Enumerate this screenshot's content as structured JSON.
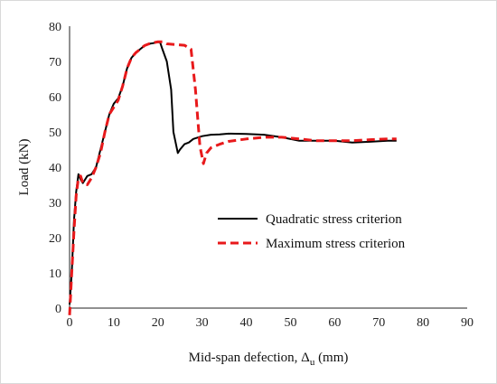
{
  "chart_data": {
    "type": "line",
    "title": "",
    "xlabel_main": "Mid-span defection, Δ",
    "xlabel_sub": "u",
    "xlabel_unit": " (mm)",
    "ylabel": "Load (kN)",
    "xlim": [
      0,
      90
    ],
    "ylim": [
      0,
      80
    ],
    "xticks": [
      "0",
      "10",
      "20",
      "30",
      "40",
      "50",
      "60",
      "70",
      "80",
      "90"
    ],
    "yticks": [
      "0",
      "10",
      "20",
      "30",
      "40",
      "50",
      "60",
      "70",
      "80"
    ],
    "grid": false,
    "legend_position": "center-right",
    "series": [
      {
        "name": "Quadratic stress criterion",
        "color": "#000000",
        "dash": "solid",
        "points": [
          [
            0,
            1
          ],
          [
            0.5,
            10
          ],
          [
            1,
            25
          ],
          [
            1.5,
            33
          ],
          [
            2,
            38
          ],
          [
            2.5,
            36.5
          ],
          [
            3,
            35.5
          ],
          [
            4,
            37.5
          ],
          [
            5,
            38
          ],
          [
            6,
            40
          ],
          [
            7,
            45
          ],
          [
            8,
            50
          ],
          [
            9,
            55
          ],
          [
            10,
            58
          ],
          [
            11,
            59.5
          ],
          [
            12,
            63
          ],
          [
            13,
            68
          ],
          [
            14,
            71
          ],
          [
            15,
            72.5
          ],
          [
            16,
            73.5
          ],
          [
            17,
            74.5
          ],
          [
            18,
            75
          ],
          [
            19,
            75.2
          ],
          [
            20,
            75.5
          ],
          [
            20.5,
            75.4
          ],
          [
            21,
            73.5
          ],
          [
            22,
            70
          ],
          [
            23,
            62
          ],
          [
            23.5,
            50
          ],
          [
            24.5,
            44
          ],
          [
            25,
            45
          ],
          [
            26,
            46.5
          ],
          [
            27,
            47
          ],
          [
            28,
            48
          ],
          [
            30,
            48.8
          ],
          [
            32,
            49.2
          ],
          [
            34,
            49.3
          ],
          [
            36,
            49.5
          ],
          [
            40,
            49.4
          ],
          [
            44,
            49.2
          ],
          [
            48,
            48.5
          ],
          [
            52,
            47.5
          ],
          [
            56,
            47.5
          ],
          [
            60,
            47.5
          ],
          [
            64,
            47
          ],
          [
            68,
            47.2
          ],
          [
            72,
            47.5
          ],
          [
            74,
            47.5
          ]
        ]
      },
      {
        "name": "Maximum stress criterion",
        "color": "#e8191b",
        "dash": "dashed",
        "points": [
          [
            0,
            -2
          ],
          [
            0.5,
            10
          ],
          [
            1,
            22
          ],
          [
            1.5,
            32
          ],
          [
            2,
            37
          ],
          [
            2.5,
            37.5
          ],
          [
            3,
            35.5
          ],
          [
            4,
            35
          ],
          [
            5,
            37
          ],
          [
            6,
            40
          ],
          [
            7,
            44
          ],
          [
            8,
            50
          ],
          [
            9,
            55
          ],
          [
            10,
            57
          ],
          [
            11,
            59
          ],
          [
            12,
            63
          ],
          [
            13,
            68
          ],
          [
            14,
            71
          ],
          [
            15,
            72.5
          ],
          [
            16,
            73.5
          ],
          [
            17,
            74.5
          ],
          [
            18,
            75
          ],
          [
            19,
            75.3
          ],
          [
            20,
            75.6
          ],
          [
            21,
            75.6
          ],
          [
            22,
            75
          ],
          [
            24,
            74.8
          ],
          [
            26,
            74.6
          ],
          [
            27.5,
            73.5
          ],
          [
            28.5,
            62
          ],
          [
            29.5,
            46
          ],
          [
            30.3,
            41
          ],
          [
            31,
            44
          ],
          [
            32,
            45.5
          ],
          [
            34,
            46.5
          ],
          [
            36,
            47.3
          ],
          [
            40,
            48
          ],
          [
            44,
            48.5
          ],
          [
            48,
            48.5
          ],
          [
            52,
            48
          ],
          [
            56,
            47.5
          ],
          [
            60,
            47.5
          ],
          [
            64,
            47.5
          ],
          [
            68,
            47.8
          ],
          [
            72,
            48
          ],
          [
            74,
            48
          ]
        ]
      }
    ]
  }
}
